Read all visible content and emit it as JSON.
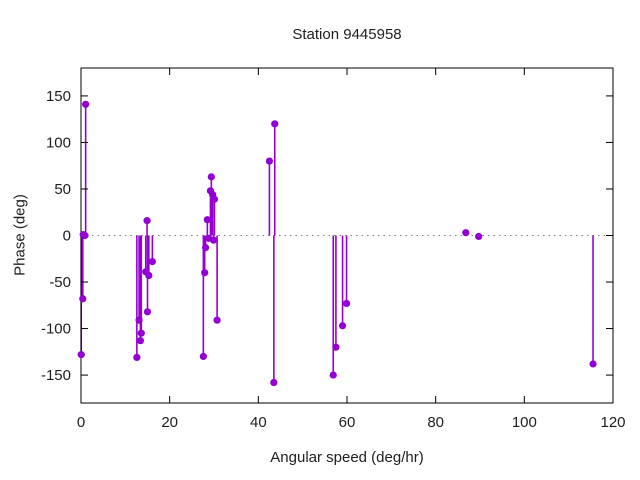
{
  "chart_data": {
    "type": "scatter",
    "style": "impulses+points",
    "title": "Station 9445958",
    "xlabel": "Angular speed (deg/hr)",
    "ylabel": "Phase (deg)",
    "xlim": [
      0,
      120
    ],
    "ylim": [
      -180,
      180
    ],
    "xticks": [
      0,
      20,
      40,
      60,
      80,
      100,
      120
    ],
    "yticks": [
      -150,
      -100,
      -50,
      0,
      50,
      100,
      150
    ],
    "grid": false,
    "zero_line": true,
    "legend": "none",
    "background_color": "#ffffff",
    "axis_color": "#000000",
    "zero_line_color": "#808080",
    "series_color": "#9400d3",
    "points": [
      [
        0.05,
        -128
      ],
      [
        0.4,
        -68
      ],
      [
        0.5,
        1
      ],
      [
        0.9,
        0
      ],
      [
        1.05,
        141
      ],
      [
        12.6,
        -131
      ],
      [
        13.1,
        -91
      ],
      [
        13.4,
        -113
      ],
      [
        13.6,
        -105
      ],
      [
        14.6,
        -39
      ],
      [
        14.9,
        16
      ],
      [
        15.0,
        -82
      ],
      [
        15.3,
        -43
      ],
      [
        16.1,
        -28
      ],
      [
        27.6,
        -130
      ],
      [
        27.9,
        -40
      ],
      [
        28.1,
        -13
      ],
      [
        28.5,
        17
      ],
      [
        28.8,
        -3
      ],
      [
        29.2,
        48
      ],
      [
        29.4,
        63
      ],
      [
        29.7,
        44
      ],
      [
        29.9,
        -5
      ],
      [
        30.1,
        39
      ],
      [
        30.7,
        -91
      ],
      [
        42.5,
        80
      ],
      [
        43.5,
        -158
      ],
      [
        43.7,
        120
      ],
      [
        56.9,
        -150
      ],
      [
        57.5,
        -120
      ],
      [
        59.0,
        -97
      ],
      [
        59.9,
        -73
      ],
      [
        86.8,
        3
      ],
      [
        89.7,
        -1
      ],
      [
        115.5,
        -138
      ]
    ]
  }
}
